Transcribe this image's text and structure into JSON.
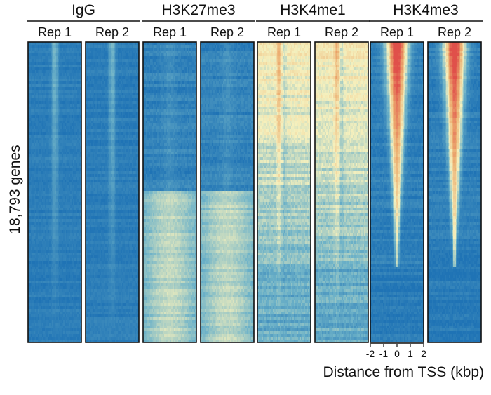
{
  "chart_data": {
    "type": "heatmap",
    "title": "",
    "ylabel": "18,793 genes",
    "xlabel": "Distance from TSS (kbp)",
    "x_ticks": [
      "-2",
      "-1",
      "0",
      "1",
      "2"
    ],
    "x_range": [
      -2,
      2
    ],
    "n_genes": 18793,
    "groups": [
      {
        "name": "IgG",
        "replicates": [
          "Rep 1",
          "Rep 2"
        ]
      },
      {
        "name": "H3K27me3",
        "replicates": [
          "Rep 1",
          "Rep 2"
        ]
      },
      {
        "name": "H3K4me1",
        "replicates": [
          "Rep 1",
          "Rep 2"
        ]
      },
      {
        "name": "H3K4me3",
        "replicates": [
          "Rep 1",
          "Rep 2"
        ]
      }
    ],
    "colorscale": [
      "#1f73b5",
      "#6fb3c8",
      "#f5f0bd",
      "#ecb072",
      "#e0504a"
    ],
    "value_range": [
      0,
      1
    ]
  }
}
